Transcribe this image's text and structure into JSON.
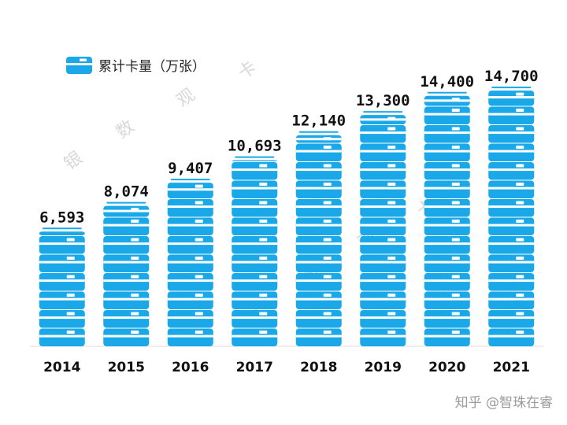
{
  "chart_data": {
    "type": "bar",
    "categories": [
      "2014",
      "2015",
      "2016",
      "2017",
      "2018",
      "2019",
      "2020",
      "2021"
    ],
    "values": [
      6593,
      8074,
      9407,
      10693,
      12140,
      13300,
      14400,
      14700
    ],
    "value_labels": [
      "6,593",
      "8,074",
      "9,407",
      "10,693",
      "12,140",
      "13,300",
      "14,400",
      "14,700"
    ],
    "legend": "累计卡量（万张）",
    "legend_position": "top-left",
    "title": "",
    "xlabel": "",
    "ylabel": "",
    "ylim": [
      0,
      15000
    ],
    "grid": false,
    "bar_style": "stacked-card-icons",
    "colors": {
      "bar": "#1aa8e8",
      "card_stripe": "#ffffff",
      "baseline": "#dddddd"
    }
  },
  "watermarks": [
    {
      "chars": [
        "银",
        "数",
        "观",
        "卡"
      ]
    },
    {
      "chars": [
        "银",
        "数",
        "观",
        "卡"
      ]
    }
  ],
  "credit": "知乎 @智珠在睿"
}
